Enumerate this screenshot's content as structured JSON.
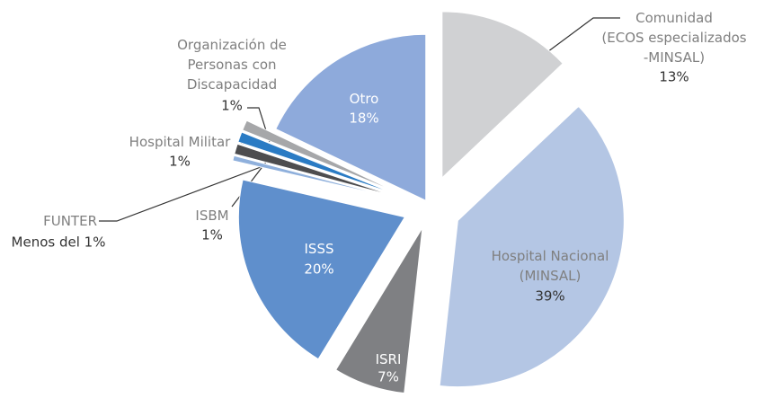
{
  "chart_data": {
    "type": "pie",
    "categories": [
      "Comunidad\n(ECOS especializados\n-MINSAL)",
      "Hospital Nacional\n(MINSAL)",
      "ISRI",
      "ISSS",
      "FUNTER",
      "ISBM",
      "Hospital Militar",
      "Organización de\nPersonas con\nDiscapacidad",
      "Otro"
    ],
    "values": [
      13,
      39,
      7,
      20,
      0.5,
      1,
      1,
      1,
      18
    ],
    "value_labels": [
      "13%",
      "39%",
      "7%",
      "20%",
      "Menos del 1%",
      "1%",
      "1%",
      "1%",
      "18%"
    ],
    "colors": [
      "#d0d1d3",
      "#b4c6e4",
      "#7f8083",
      "#5f8fcc",
      "#8fb0dc",
      "#4d4d4f",
      "#2a7bc4",
      "#a6a7a9",
      "#8eaadb"
    ]
  }
}
